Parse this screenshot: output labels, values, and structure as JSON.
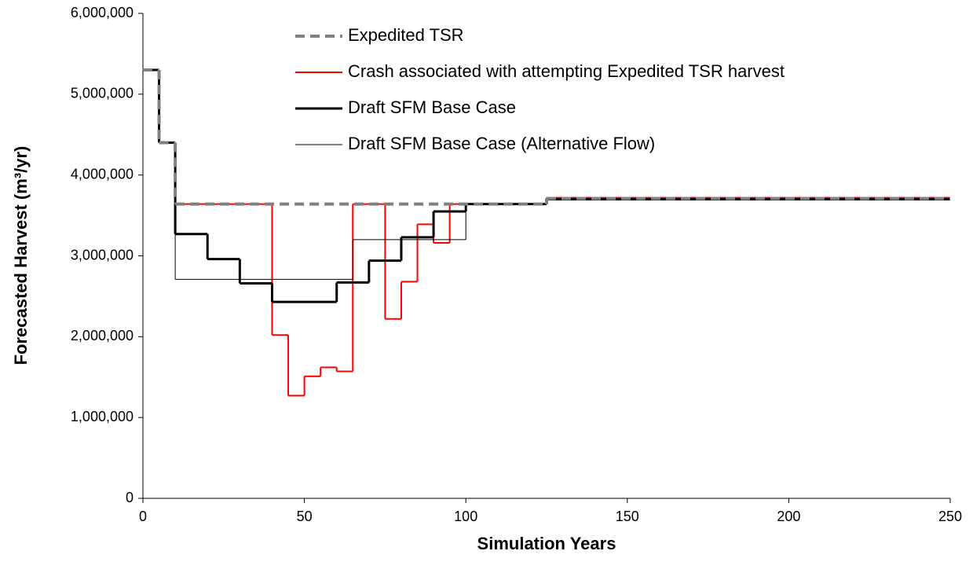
{
  "chart_data": {
    "type": "step",
    "xlabel": "Simulation Years",
    "ylabel": "Forecasted Harvest (m³/yr)",
    "xlim": [
      0,
      250
    ],
    "xticks": [
      0,
      50,
      100,
      150,
      200,
      250
    ],
    "ylim": [
      0,
      6000000
    ],
    "yticks": [
      0,
      {
        "value": 1000000,
        "label": "1,000,000"
      },
      {
        "value": 2000000,
        "label": "2,000,000"
      },
      {
        "value": 3000000,
        "label": "3,000,000"
      },
      {
        "value": 4000000,
        "label": "4,000,000"
      },
      {
        "value": 5000000,
        "label": "5,000,000"
      },
      {
        "value": 6000000,
        "label": "6,000,000"
      }
    ],
    "grid": false,
    "legend": "top",
    "series": [
      {
        "name": "Expedited TSR",
        "color": "#808080",
        "width": 4,
        "dash": true,
        "x": [
          0,
          5,
          10,
          125
        ],
        "values": [
          5300000,
          4400000,
          3640000,
          3710000
        ]
      },
      {
        "name": "Crash associated with attempting Expedited TSR harvest",
        "color": "#ff0000",
        "width": 2,
        "dash": false,
        "x": [
          0,
          5,
          10,
          40,
          45,
          50,
          55,
          60,
          65,
          75,
          80,
          85,
          90,
          95,
          125
        ],
        "values": [
          5300000,
          4400000,
          3640000,
          2020000,
          1270000,
          1510000,
          1620000,
          1570000,
          3640000,
          2220000,
          2680000,
          3390000,
          3160000,
          3640000,
          3720000
        ]
      },
      {
        "name": "Draft SFM Base Case",
        "color": "#000000",
        "width": 3,
        "dash": false,
        "x": [
          0,
          5,
          10,
          20,
          30,
          40,
          60,
          70,
          80,
          90,
          100,
          125
        ],
        "values": [
          5300000,
          4400000,
          3270000,
          2960000,
          2660000,
          2430000,
          2670000,
          2940000,
          3230000,
          3550000,
          3640000,
          3700000
        ]
      },
      {
        "name": "Draft SFM Base Case (Alternative Flow)",
        "color": "#000000",
        "width": 1,
        "dash": false,
        "x": [
          0,
          5,
          10,
          65,
          100,
          125
        ],
        "values": [
          5300000,
          4400000,
          2710000,
          3200000,
          3640000,
          3700000
        ]
      }
    ]
  }
}
